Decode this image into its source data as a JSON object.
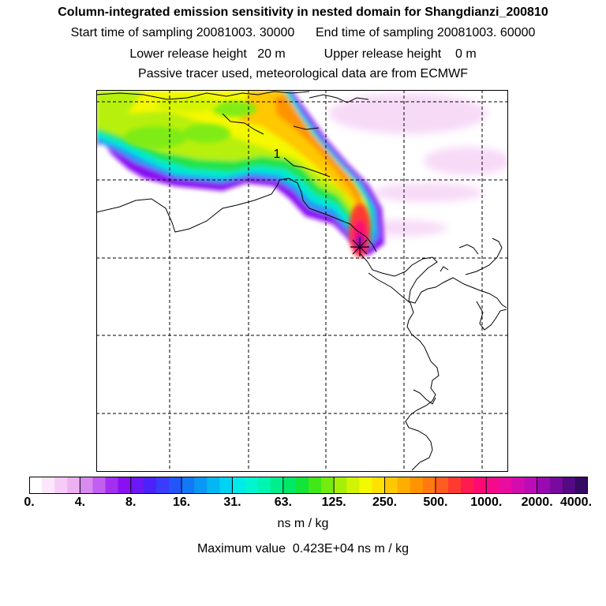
{
  "header": {
    "title": "Column-integrated emission sensitivity in nested domain for Shangdianzi_200810",
    "start_label": "Start time of sampling 20081003. 30000",
    "end_label": "End time of sampling 20081003. 60000",
    "lower_label": "Lower release height   20 m",
    "upper_label": "Upper release height    0 m",
    "line3": "Passive tracer used, meteorological data are from ECMWF"
  },
  "map": {
    "plume_label": "1",
    "release_marker": "star"
  },
  "colorbar": {
    "ticks": [
      "0.",
      "4.",
      "8.",
      "16.",
      "31.",
      "63.",
      "125.",
      "250.",
      "500.",
      "1000.",
      "2000.",
      "4000."
    ],
    "colors": [
      "#ffffff",
      "#fbe6fb",
      "#f4ccf6",
      "#edb1f2",
      "#d98aef",
      "#c15ff0",
      "#a32ff0",
      "#8a10f2",
      "#6a18f5",
      "#4c22f8",
      "#3b3bfa",
      "#2256f8",
      "#1178f6",
      "#0a98f4",
      "#04b6f2",
      "#00d2f2",
      "#00eaea",
      "#00f6d0",
      "#00f4b2",
      "#00ee8c",
      "#00e866",
      "#12e43a",
      "#40e818",
      "#74ec10",
      "#a6f008",
      "#d2f404",
      "#f4f800",
      "#ffe000",
      "#ffc800",
      "#ffae00",
      "#ff9400",
      "#ff7a10",
      "#ff5c20",
      "#ff3a30",
      "#ff1a50",
      "#ff0a72",
      "#f60a8c",
      "#e80ca0",
      "#d40cae",
      "#bc0cb8",
      "#9a0ab2",
      "#780aa0",
      "#540a82",
      "#360a62"
    ],
    "units": "ns m / kg",
    "max_value": "Maximum value  0.423E+04 ns m / kg"
  }
}
